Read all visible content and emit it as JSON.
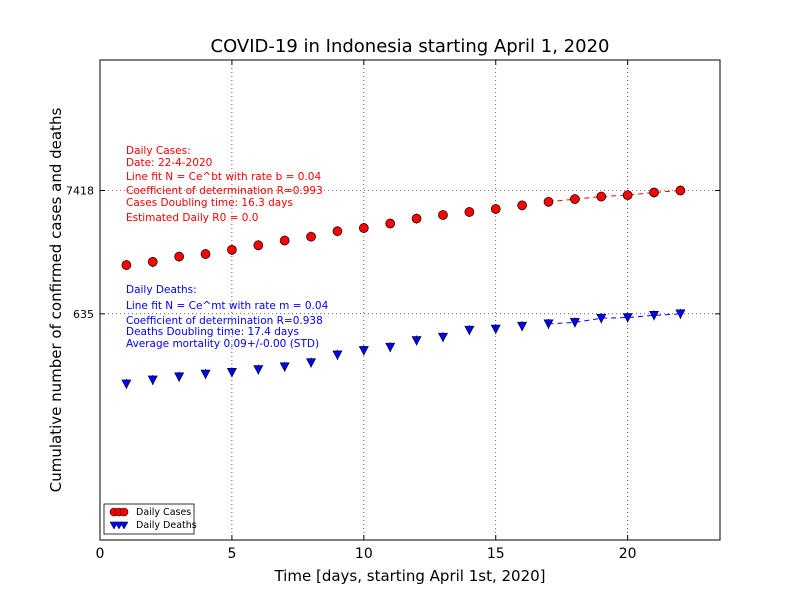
{
  "chart_data": {
    "type": "scatter",
    "title": "COVID-19 in Indonesia starting April 1, 2020",
    "xlabel": "Time [days, starting April 1st, 2020]",
    "ylabel": "Cumulative number of confirmed cases and deaths",
    "yscale": "log",
    "xlim": [
      0,
      23.5
    ],
    "ylim": [
      7,
      100000
    ],
    "x_ticks": [
      0,
      5,
      10,
      15,
      20
    ],
    "y_ticks": [
      {
        "value": 635,
        "label": "635"
      },
      {
        "value": 7418,
        "label": "7418"
      }
    ],
    "grid": "dotted",
    "legend_position": "lower-left",
    "series": [
      {
        "name": "Daily Cases",
        "color": "#ff0000",
        "marker": "circle",
        "x": [
          1,
          2,
          3,
          4,
          5,
          6,
          7,
          8,
          9,
          10,
          11,
          12,
          13,
          14,
          15,
          16,
          17,
          18,
          19,
          20,
          21,
          22
        ],
        "y": [
          1677,
          1790,
          1986,
          2092,
          2273,
          2491,
          2738,
          2956,
          3293,
          3512,
          3842,
          4241,
          4557,
          4839,
          5136,
          5516,
          5923,
          6248,
          6575,
          6760,
          7135,
          7418
        ]
      },
      {
        "name": "Daily Deaths",
        "color": "#0000ff",
        "marker": "triangle-down",
        "x": [
          1,
          2,
          3,
          4,
          5,
          6,
          7,
          8,
          9,
          10,
          11,
          12,
          13,
          14,
          15,
          16,
          17,
          18,
          19,
          20,
          21,
          22
        ],
        "y": [
          157,
          170,
          181,
          191,
          198,
          209,
          221,
          240,
          280,
          306,
          327,
          373,
          399,
          459,
          469,
          496,
          520,
          535,
          582,
          590,
          616,
          635
        ]
      }
    ],
    "annotations": {
      "cases": {
        "color": "#ff0000",
        "lines": [
          "Daily Cases:",
          "Date: 22-4-2020",
          "Line fit N = Ce^bt with rate b = 0.04",
          "Coefficient of determination R=0.993",
          "Cases Doubling time: 16.3 days",
          "Estimated Daily R0 = 0.0"
        ]
      },
      "deaths": {
        "color": "#0000ff",
        "lines": [
          "Daily Deaths:",
          "Line fit N = Ce^mt with rate m = 0.04",
          "Coefficient of determination R=0.938",
          "Deaths Doubling time: 17.4 days",
          "Average mortality 0.09+/-0.00 (STD)"
        ]
      }
    }
  }
}
